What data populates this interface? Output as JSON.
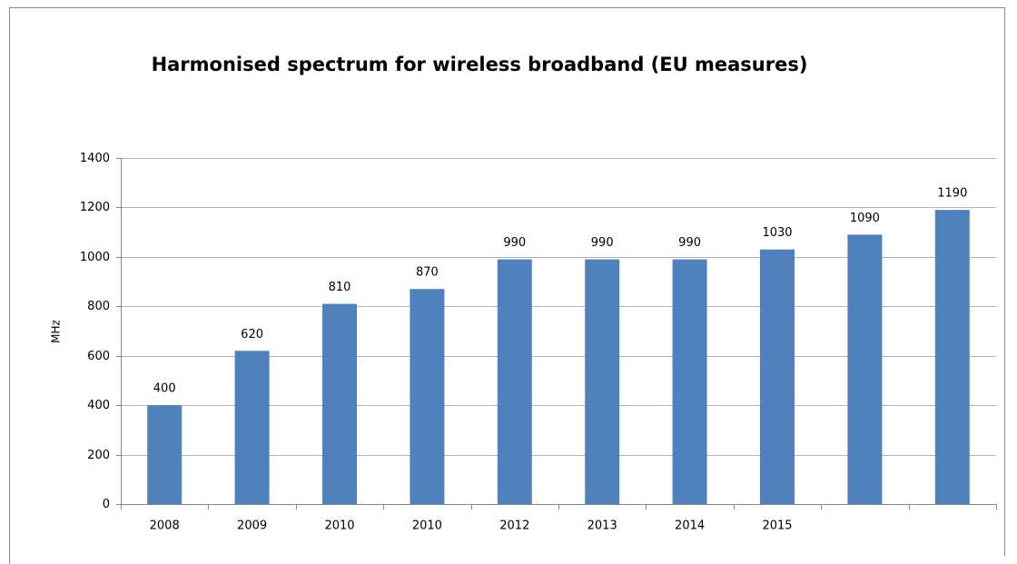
{
  "chart_data": {
    "type": "bar",
    "title": "Harmonised spectrum for wireless  broadband (EU measures)",
    "y_label": "MHz",
    "categories": [
      "2008",
      "2009",
      "2010",
      "2010",
      "2012",
      "2013",
      "2014",
      "2015",
      null,
      null
    ],
    "values": [
      400,
      620,
      810,
      870,
      990,
      990,
      990,
      1030,
      1090,
      1190
    ],
    "color": "#4f81bd",
    "ylim": [
      0,
      1400
    ],
    "yticks": [
      0,
      200,
      400,
      600,
      800,
      1000,
      1200,
      1400
    ],
    "grid": true
  }
}
